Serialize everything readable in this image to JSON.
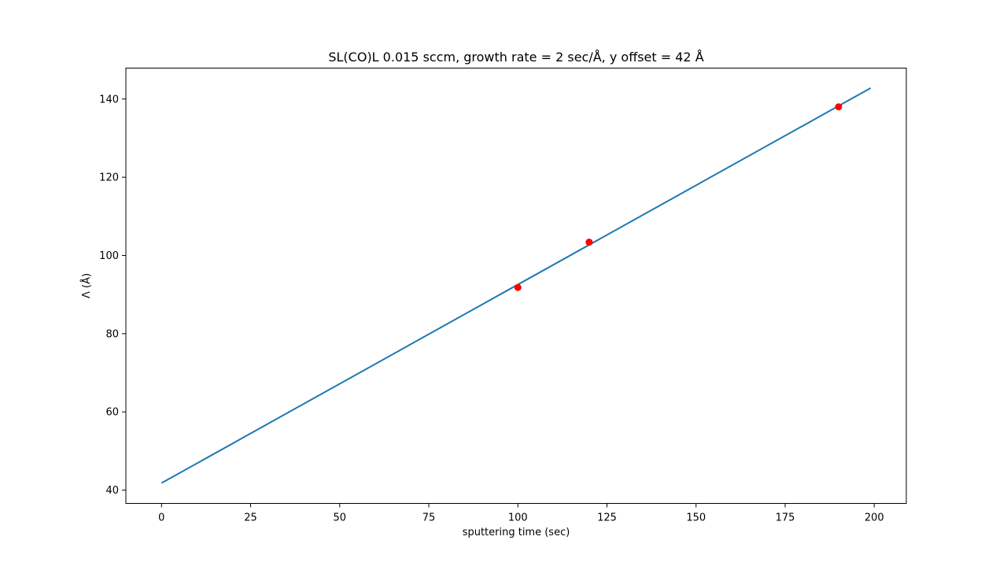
{
  "chart_data": {
    "type": "line",
    "title": "SL(CO)L 0.015 sccm, growth rate = 2 sec/Å, y offset = 42 Å",
    "xlabel": "sputtering time (sec)",
    "ylabel": "Λ (Å)",
    "xlim": [
      -10,
      209
    ],
    "ylim": [
      36.6,
      147.9
    ],
    "xticks": [
      0,
      25,
      50,
      75,
      100,
      125,
      150,
      175,
      200
    ],
    "yticks": [
      40,
      60,
      80,
      100,
      120,
      140
    ],
    "grid": false,
    "series": [
      {
        "kind": "line",
        "color": "#1f77b4",
        "x": [
          0,
          199
        ],
        "y": [
          41.8,
          142.8
        ]
      },
      {
        "kind": "scatter",
        "color": "#ff0000",
        "x": [
          100,
          120,
          190
        ],
        "y": [
          91.8,
          103.4,
          138.0
        ]
      }
    ]
  }
}
